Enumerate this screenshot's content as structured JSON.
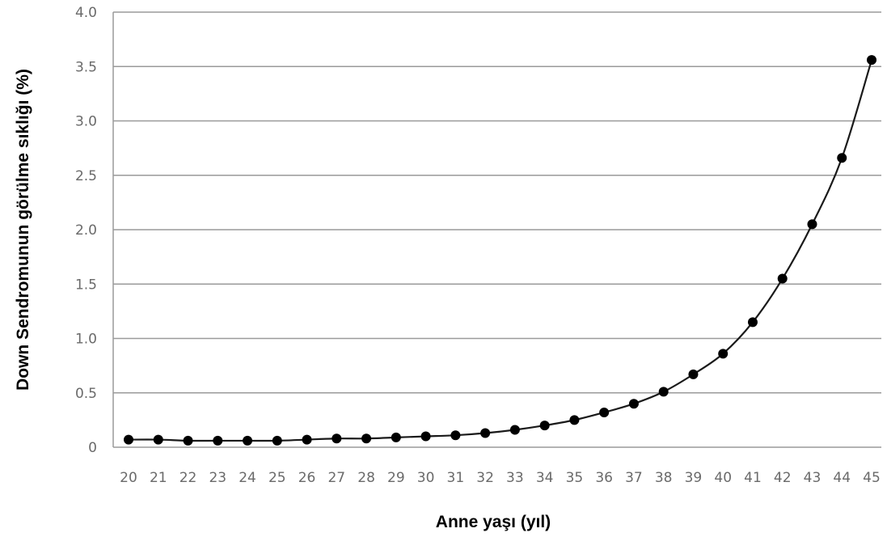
{
  "chart_data": {
    "type": "line",
    "title": "",
    "xlabel": "Anne yaşı (yıl)",
    "ylabel": "Down Sendromunun görülme sıklığı (%)",
    "x": [
      20,
      21,
      22,
      23,
      24,
      25,
      26,
      27,
      28,
      29,
      30,
      31,
      32,
      33,
      34,
      35,
      36,
      37,
      38,
      39,
      40,
      41,
      42,
      43,
      44,
      45
    ],
    "x_tick_labels": [
      "20",
      "21",
      "22",
      "23",
      "24",
      "25",
      "26",
      "27",
      "28",
      "29",
      "30",
      "31",
      "32",
      "33",
      "34",
      "35",
      "36",
      "37",
      "38",
      "39",
      "40",
      "41",
      "42",
      "43",
      "44",
      "45"
    ],
    "y_tick_labels": [
      "0",
      "0.5",
      "1.0",
      "1.5",
      "2.0",
      "2.5",
      "3.0",
      "3.5",
      "4.0"
    ],
    "y_ticks": [
      0,
      0.5,
      1.0,
      1.5,
      2.0,
      2.5,
      3.0,
      3.5,
      4.0
    ],
    "series": [
      {
        "values": [
          0.07,
          0.07,
          0.06,
          0.06,
          0.06,
          0.06,
          0.07,
          0.08,
          0.08,
          0.09,
          0.1,
          0.11,
          0.13,
          0.16,
          0.2,
          0.25,
          0.32,
          0.4,
          0.51,
          0.67,
          0.86,
          1.15,
          1.55,
          2.05,
          2.66,
          3.56
        ],
        "color": "#000000"
      }
    ],
    "ylim": [
      0,
      4.0
    ],
    "grid": true,
    "legend": "none"
  }
}
